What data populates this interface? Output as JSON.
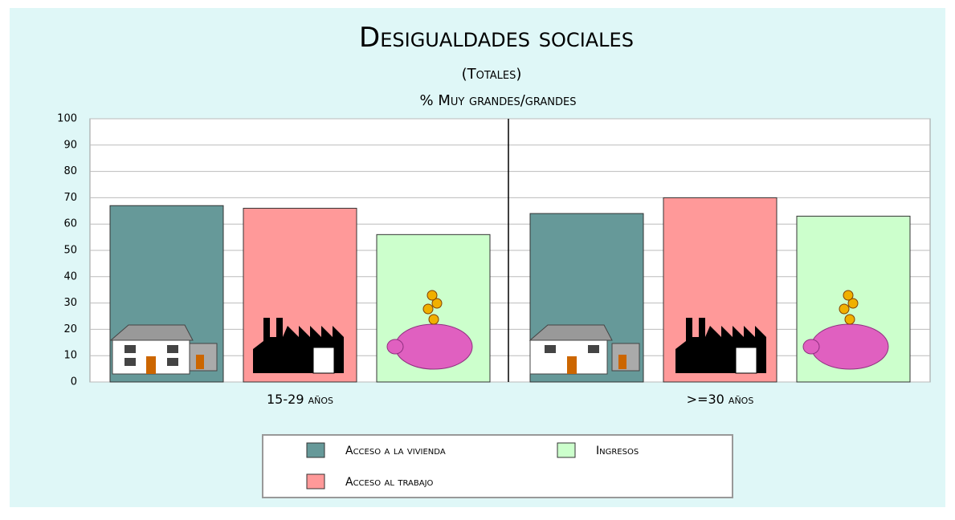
{
  "chart_data": {
    "type": "bar",
    "title": "Desigualdades sociales",
    "subtitle": "(Totales)",
    "y_label": "% Muy grandes/grandes",
    "categories": [
      "15-29 años",
      ">=30 años"
    ],
    "series": [
      {
        "name": "Acceso a la vivienda",
        "color": "#669999",
        "values": [
          67,
          64
        ]
      },
      {
        "name": "Acceso al trabajo",
        "color": "#ff9999",
        "values": [
          66,
          70
        ]
      },
      {
        "name": "Ingresos",
        "color": "#ccffcc",
        "values": [
          56,
          63
        ]
      }
    ],
    "ylim": [
      0,
      100
    ],
    "yticks": [
      0,
      10,
      20,
      30,
      40,
      50,
      60,
      70,
      80,
      90,
      100
    ],
    "grid": true
  }
}
